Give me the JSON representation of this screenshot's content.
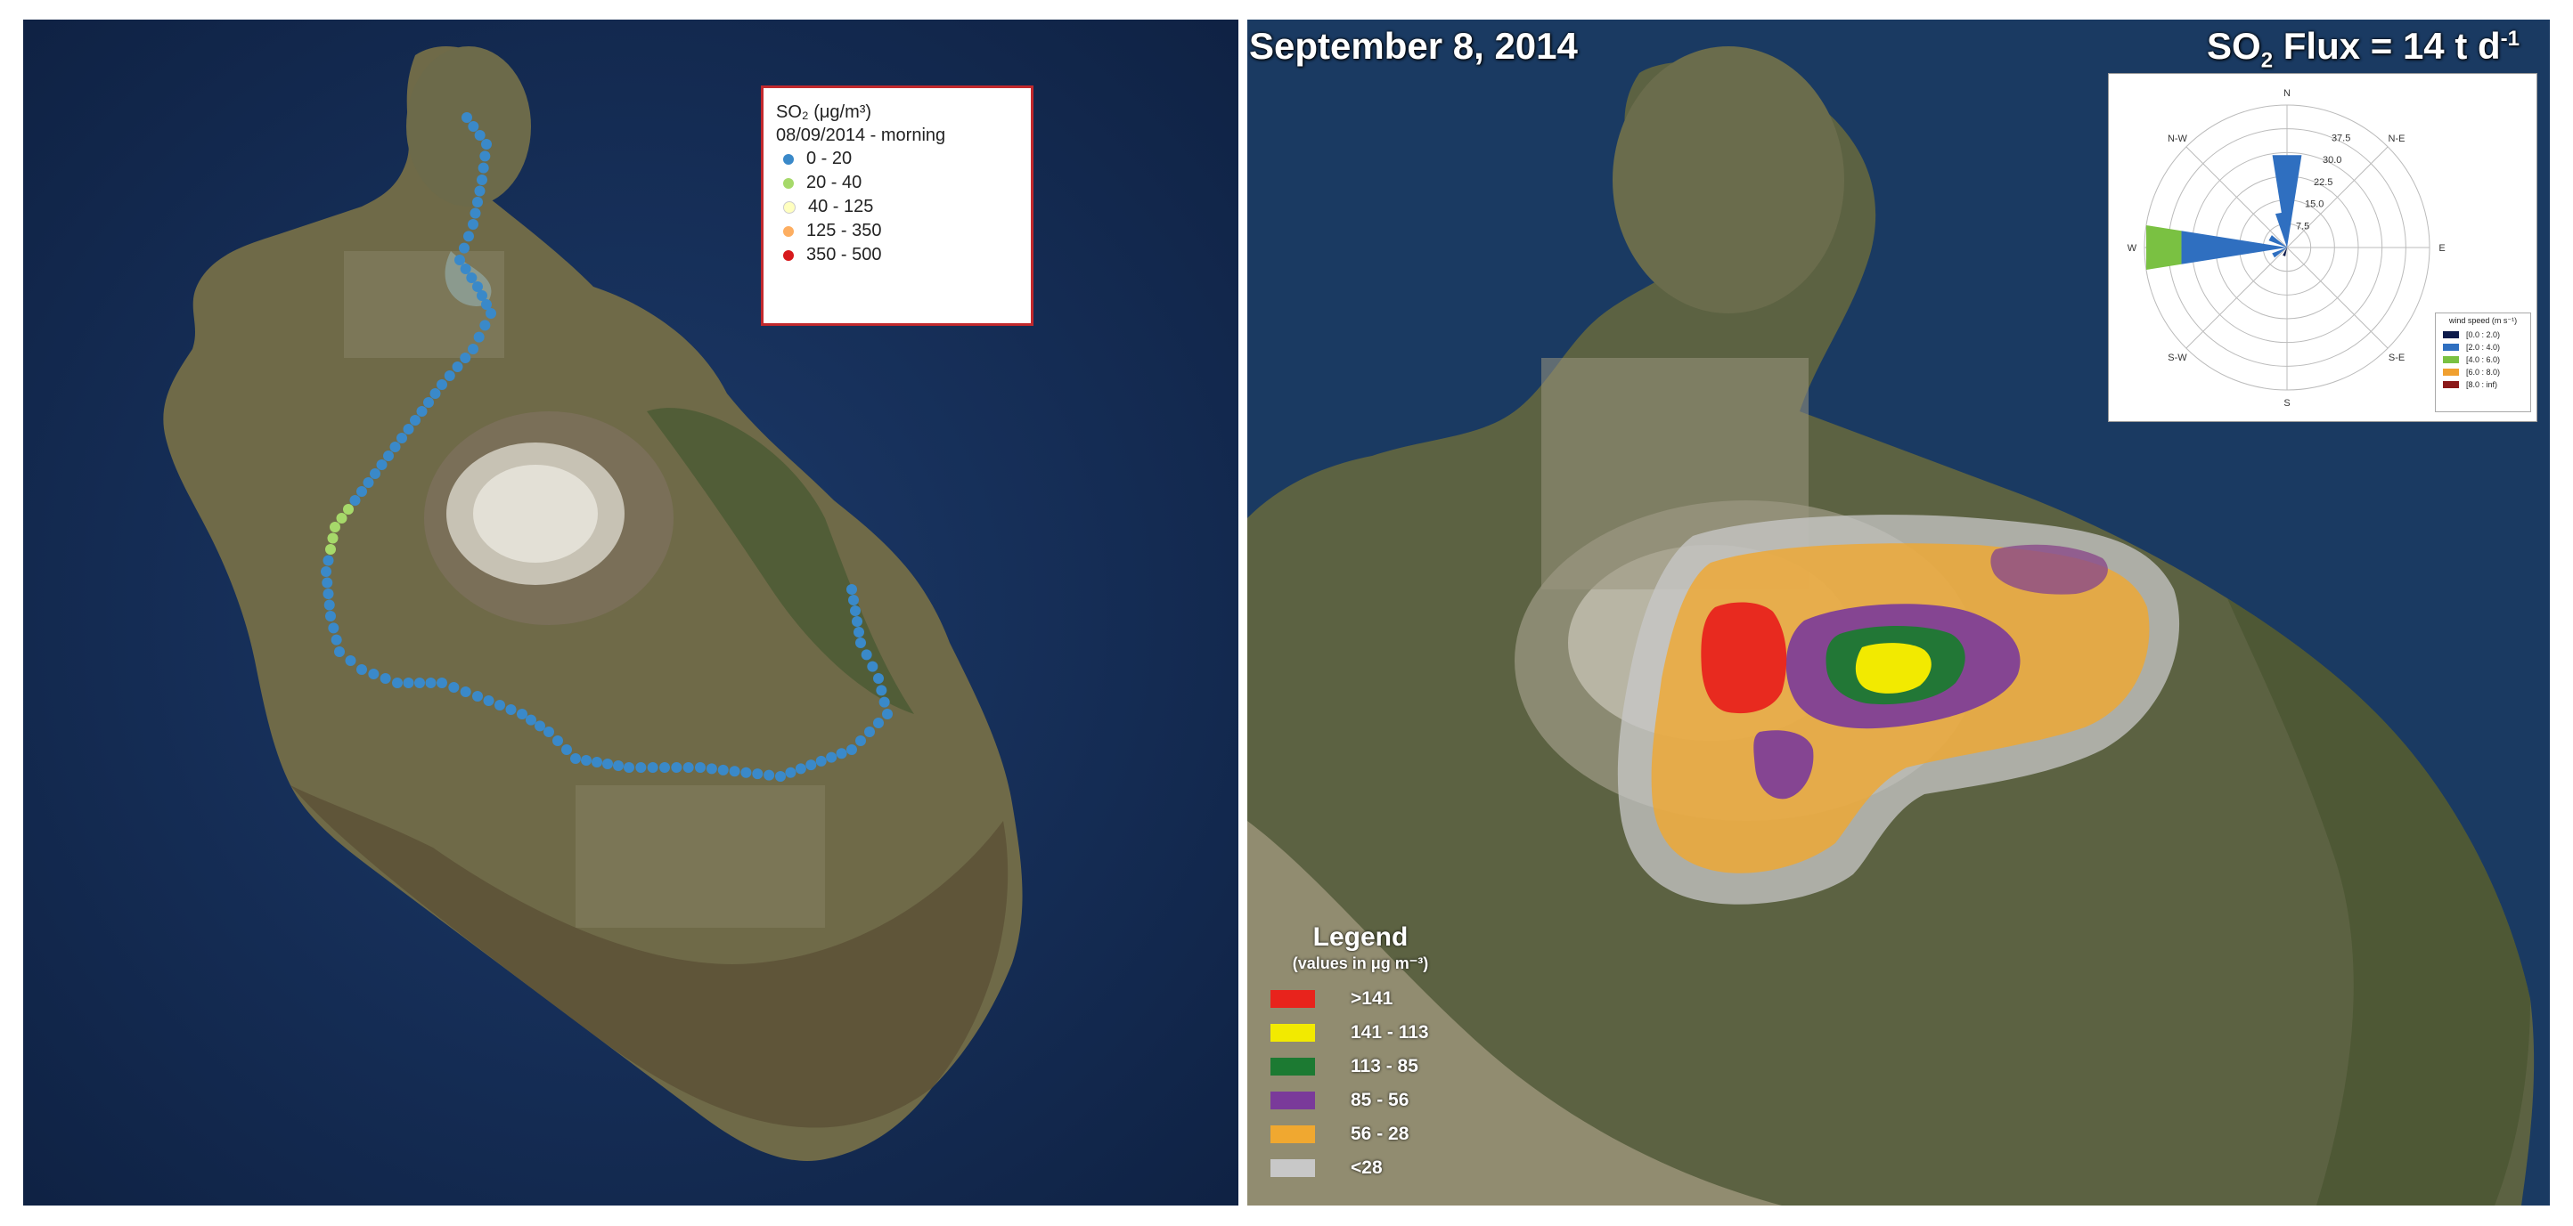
{
  "left_map": {
    "legend": {
      "title": "SO₂ (μg/m³)",
      "subtitle": "08/09/2014 - morning",
      "classes": [
        {
          "label": "0 - 20",
          "color": "#3a89c9"
        },
        {
          "label": "20 - 40",
          "color": "#a6d96a"
        },
        {
          "label": "40 - 125",
          "color": "#ffffbf"
        },
        {
          "label": "125 - 350",
          "color": "#fdae61"
        },
        {
          "label": "350 - 500",
          "color": "#d7191c"
        }
      ]
    }
  },
  "right_map": {
    "date_title": "September 8, 2014",
    "flux_title": {
      "prefix": "SO",
      "sub": "2",
      "middle": " Flux = 14 t d",
      "sup": "-1"
    },
    "legend": {
      "title": "Legend",
      "subtitle": "(values in μg m⁻³)",
      "classes": [
        {
          "label": ">141",
          "color": "#e8231c"
        },
        {
          "label": "141 - 113",
          "color": "#f2ea00"
        },
        {
          "label": "113 - 85",
          "color": "#1c7a32"
        },
        {
          "label": "85 - 56",
          "color": "#7a3a9a"
        },
        {
          "label": "56 - 28",
          "color": "#f0a830"
        },
        {
          "label": "<28",
          "color": "#c8c8c8"
        }
      ]
    },
    "wind_rose": {
      "directions": [
        "N",
        "N-E",
        "E",
        "S-E",
        "S",
        "S-W",
        "W",
        "N-W"
      ],
      "radial_ticks": [
        "7.5",
        "15.0",
        "22.5",
        "30.0",
        "37.5"
      ],
      "legend_title": "wind speed (m s⁻¹)",
      "speed_classes": [
        {
          "label": "[0.0 : 2.0)",
          "color": "#0d1b4b"
        },
        {
          "label": "[2.0 : 4.0)",
          "color": "#2f6fc0"
        },
        {
          "label": "[4.0 : 6.0)",
          "color": "#7ac142"
        },
        {
          "label": "[6.0 : 8.0)",
          "color": "#f0a030"
        },
        {
          "label": "[8.0 : inf)",
          "color": "#8b1a1a"
        }
      ]
    }
  }
}
